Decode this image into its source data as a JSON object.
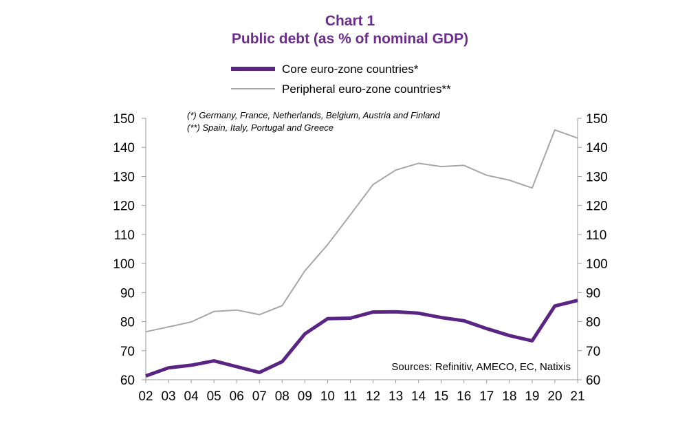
{
  "chart_data": {
    "type": "line",
    "title": "Chart 1",
    "subtitle": "Public debt (as % of nominal GDP)",
    "categories": [
      "02",
      "03",
      "04",
      "05",
      "06",
      "07",
      "08",
      "09",
      "10",
      "11",
      "12",
      "13",
      "14",
      "15",
      "16",
      "17",
      "18",
      "19",
      "20",
      "21"
    ],
    "series": [
      {
        "name": "Core euro-zone countries*",
        "color": "#5a2482",
        "values": [
          61.3,
          64.1,
          65.0,
          66.5,
          64.5,
          62.5,
          66.2,
          75.8,
          81.0,
          81.2,
          83.3,
          83.4,
          82.9,
          81.4,
          80.3,
          77.6,
          75.2,
          73.4,
          85.4,
          87.3
        ]
      },
      {
        "name": "Peripheral euro-zone countries**",
        "color": "#a6a6a6",
        "values": [
          76.5,
          78.2,
          79.9,
          83.5,
          84.0,
          82.4,
          85.5,
          97.5,
          106.5,
          116.8,
          127.2,
          132.2,
          134.5,
          133.4,
          133.8,
          130.4,
          128.7,
          126.0,
          146.0,
          143.2
        ]
      }
    ],
    "ylim": [
      60,
      150
    ],
    "yticks": [
      60,
      70,
      80,
      90,
      100,
      110,
      120,
      130,
      140,
      150
    ],
    "xlabel": "",
    "ylabel": "",
    "grid": false,
    "legend": "top",
    "notes": [
      "(*) Germany, France, Netherlands, Belgium, Austria and Finland",
      "(**) Spain, Italy, Portugal and Greece"
    ],
    "source": "Sources: Refinitiv, AMECO, EC, Natixis"
  }
}
